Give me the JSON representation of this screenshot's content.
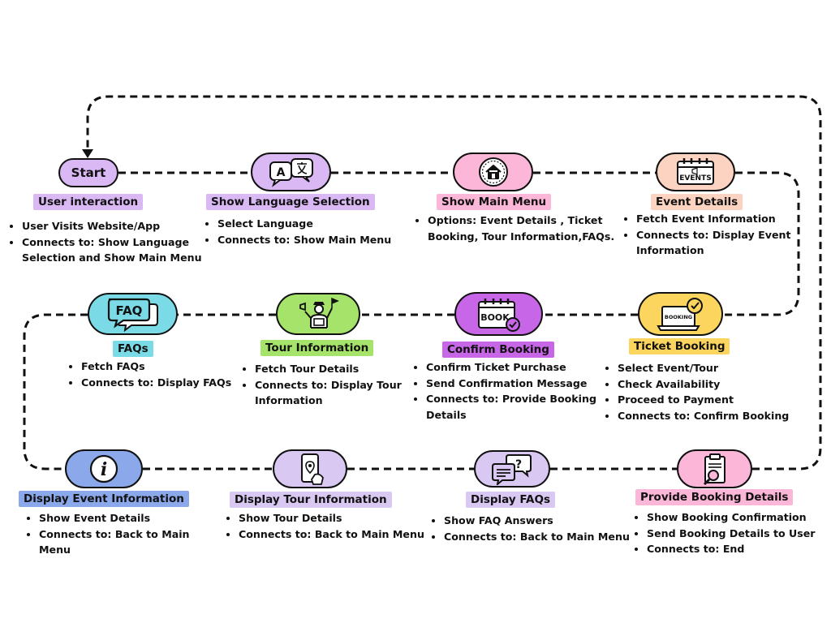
{
  "colors": {
    "purple": "#d9b8f4",
    "pink": "#fbb6d8",
    "peach": "#fcd3c0",
    "cyan": "#7adbe6",
    "green": "#a6e36a",
    "violet": "#c766e6",
    "yellow": "#fcd55e",
    "blue": "#8aa8ea",
    "lavender": "#d8c8f2",
    "line": "#111111"
  },
  "steps": [
    {
      "id": "start",
      "node_text": "Start",
      "label": "User interaction",
      "bullets": [
        "User Visits Website/App",
        "Connects to: Show Language Selection and Show Main Menu"
      ]
    },
    {
      "id": "language",
      "icon": "translate-icon",
      "label": "Show Language Selection",
      "bullets": [
        "Select Language",
        "Connects to: Show Main Menu"
      ]
    },
    {
      "id": "main-menu",
      "icon": "home-icon",
      "label": "Show Main Menu",
      "bullets": [
        "Options: Event Details , Ticket Booking, Tour Information,FAQs."
      ]
    },
    {
      "id": "event-details",
      "icon": "events-calendar-icon",
      "icon_text": "EVENTS",
      "label": "Event Details",
      "bullets": [
        "Fetch Event Information",
        "Connects to: Display Event Information"
      ]
    },
    {
      "id": "ticket-booking",
      "icon": "laptop-booking-icon",
      "icon_text": "BOOKING",
      "label": "Ticket Booking",
      "bullets": [
        "Select Event/Tour",
        "Check Availability",
        "Proceed to Payment",
        "Connects to: Confirm Booking"
      ]
    },
    {
      "id": "confirm-booking",
      "icon": "book-calendar-icon",
      "icon_text": "BOOK",
      "label": "Confirm Booking",
      "bullets": [
        "Confirm Ticket Purchase",
        "Send Confirmation Message",
        "Connects to: Provide Booking Details"
      ]
    },
    {
      "id": "tour-info",
      "icon": "tour-guide-icon",
      "label": "Tour Information",
      "bullets": [
        "Fetch Tour Details",
        "Connects to: Display Tour Information"
      ]
    },
    {
      "id": "faqs",
      "icon": "faq-bubble-icon",
      "icon_text": "FAQ",
      "label": "FAQs",
      "bullets": [
        "Fetch FAQs",
        "Connects to: Display FAQs"
      ]
    },
    {
      "id": "display-event",
      "icon": "info-icon",
      "icon_text": "i",
      "label": "Display Event Information",
      "bullets": [
        "Show Event Details",
        "Connects to: Back to Main Menu"
      ]
    },
    {
      "id": "display-tour",
      "icon": "phone-map-icon",
      "label": "Display Tour Information",
      "bullets": [
        "Show Tour Details",
        "Connects to: Back to Main Menu"
      ]
    },
    {
      "id": "display-faqs",
      "icon": "question-chat-icon",
      "icon_text": "?",
      "label": "Display FAQs",
      "bullets": [
        "Show FAQ Answers",
        "Connects to: Back to Main Menu"
      ]
    },
    {
      "id": "provide-booking",
      "icon": "clipboard-search-icon",
      "label": "Provide Booking Details",
      "bullets": [
        "Show Booking Confirmation",
        "Send Booking Details to User",
        "Connects to: End"
      ]
    }
  ]
}
